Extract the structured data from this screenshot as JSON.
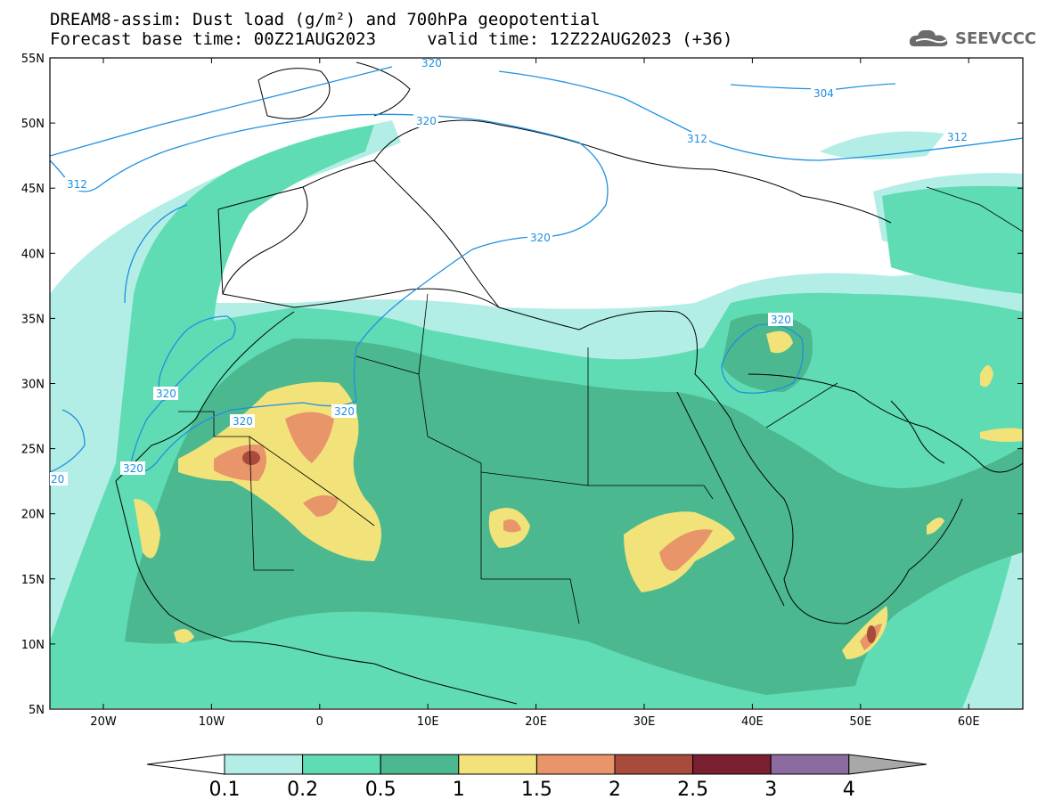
{
  "title": {
    "line1": "DREAM8-assim: Dust load (g/m²) and 700hPa geopotential",
    "line2": "Forecast base time: 00Z21AUG2023     valid time: 12Z22AUG2023 (+36)"
  },
  "logo": {
    "text": "SEEVCCC",
    "icon": "cloud-icon"
  },
  "axes": {
    "lat_labels": [
      "55N",
      "50N",
      "45N",
      "40N",
      "35N",
      "30N",
      "25N",
      "20N",
      "15N",
      "10N",
      "5N"
    ],
    "lon_labels": [
      "20W",
      "10W",
      "0",
      "10E",
      "20E",
      "30E",
      "40E",
      "50E",
      "60E"
    ]
  },
  "contour_labels": [
    "312",
    "304",
    "320",
    "312",
    "312",
    "320",
    "320",
    "320",
    "320",
    "320",
    "20",
    "320",
    "320"
  ],
  "colorbar": {
    "labels": [
      "0.1",
      "0.2",
      "0.5",
      "1",
      "1.5",
      "2",
      "2.5",
      "3",
      "4"
    ],
    "colors": [
      "#b3eee6",
      "#5fdcb4",
      "#4bb890",
      "#f2e27a",
      "#e8956a",
      "#a84a3c",
      "#7a1e32",
      "#8c6ba0",
      "#a8a8a8"
    ]
  },
  "colors": {
    "background": "#ffffff",
    "contour": "#1e90e0",
    "border": "#000000",
    "dust_01": "#b3eee6",
    "dust_02": "#5fdcb4",
    "dust_05": "#4bb890",
    "dust_1": "#f2e27a",
    "dust_15": "#e8956a",
    "dust_2": "#a84a3c"
  }
}
